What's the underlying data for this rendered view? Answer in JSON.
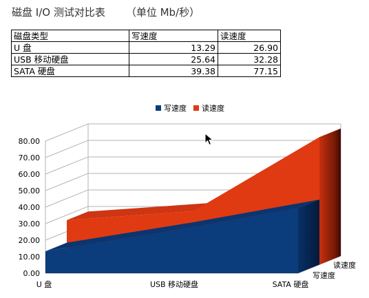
{
  "page": {
    "title": "磁盘 I/O 测试对比表",
    "unit": "（单位 Mb/秒）"
  },
  "table": {
    "headers": [
      "磁盘类型",
      "写速度",
      "读速度"
    ],
    "rows": [
      {
        "type": "U 盘",
        "write": "13.29",
        "read": "26.90"
      },
      {
        "type": "USB 移动硬盘",
        "write": "25.64",
        "read": "32.28"
      },
      {
        "type": "SATA 硬盘",
        "write": "39.38",
        "read": "77.15"
      }
    ]
  },
  "chart_data": {
    "type": "area",
    "categories": [
      "U 盘",
      "USB 移动硬盘",
      "SATA 硬盘"
    ],
    "series": [
      {
        "name": "写速度",
        "values": [
          13.29,
          25.64,
          39.38
        ],
        "color": "#0b3c7c"
      },
      {
        "name": "读速度",
        "values": [
          26.9,
          32.28,
          77.15
        ],
        "color": "#e03a13"
      }
    ],
    "ylim": [
      0,
      80
    ],
    "yticks": [
      "0.00",
      "10.00",
      "20.00",
      "30.00",
      "40.00",
      "50.00",
      "60.00",
      "70.00",
      "80.00"
    ],
    "depth_labels": [
      "写速度",
      "读速度"
    ],
    "legend_position": "top",
    "grid": true,
    "style": "3d"
  }
}
